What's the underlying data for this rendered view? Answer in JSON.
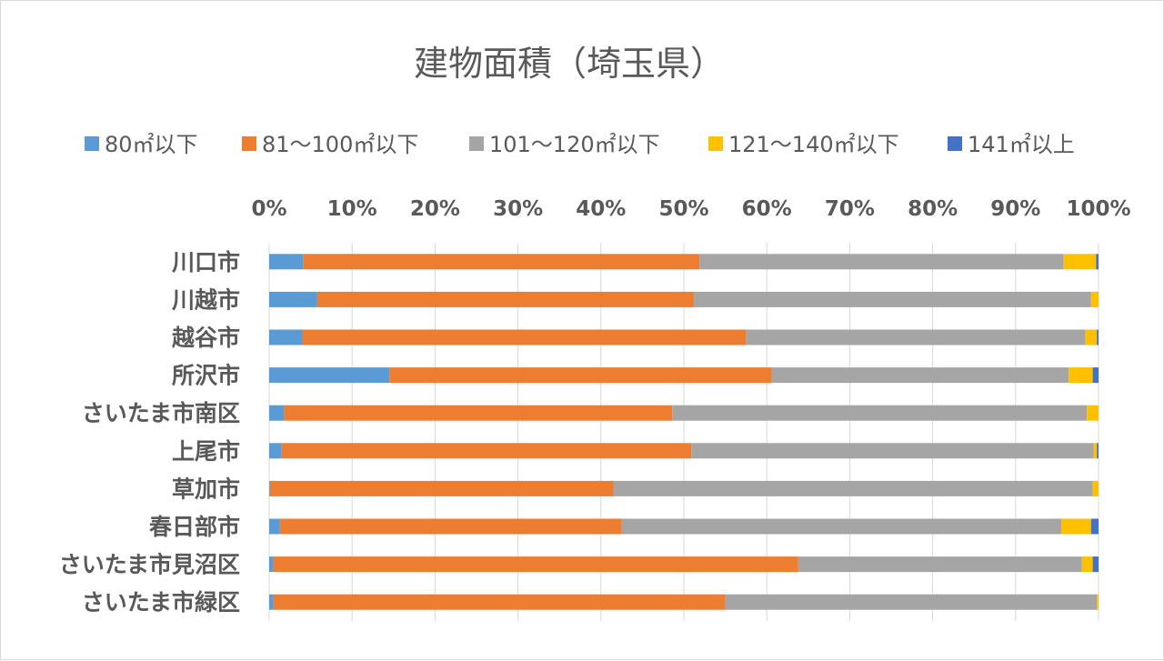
{
  "chart_data": {
    "type": "bar",
    "orientation": "horizontal",
    "stacked": "percent",
    "title": "建物面積（埼玉県）",
    "xlabel": "",
    "ylabel": "",
    "xlim": [
      0,
      1
    ],
    "x_ticks": [
      "0%",
      "10%",
      "20%",
      "30%",
      "40%",
      "50%",
      "60%",
      "70%",
      "80%",
      "90%",
      "100%"
    ],
    "x_axis_position": "top",
    "grid": true,
    "legend_position": "top",
    "categories": [
      "川口市",
      "川越市",
      "越谷市",
      "所沢市",
      "さいたま市南区",
      "上尾市",
      "草加市",
      "春日部市",
      "さいたま市見沼区",
      "さいたま市緑区"
    ],
    "series": [
      {
        "name": "80㎡以下",
        "color": "#5B9BD5",
        "values": [
          0.041,
          0.058,
          0.04,
          0.145,
          0.018,
          0.015,
          0.001,
          0.013,
          0.005,
          0.005
        ]
      },
      {
        "name": "81～100㎡以下",
        "color": "#ED7D31",
        "values": [
          0.478,
          0.454,
          0.535,
          0.461,
          0.468,
          0.494,
          0.414,
          0.412,
          0.633,
          0.545
        ]
      },
      {
        "name": "101～120㎡以下",
        "color": "#A5A5A5",
        "values": [
          0.439,
          0.479,
          0.409,
          0.358,
          0.5,
          0.485,
          0.578,
          0.53,
          0.342,
          0.448
        ]
      },
      {
        "name": "121～140㎡以下",
        "color": "#FFC000",
        "values": [
          0.039,
          0.009,
          0.014,
          0.029,
          0.014,
          0.004,
          0.007,
          0.036,
          0.013,
          0.002
        ]
      },
      {
        "name": "141㎡以上",
        "color": "#4472C4",
        "values": [
          0.003,
          0.0,
          0.002,
          0.007,
          0.0,
          0.002,
          0.0,
          0.009,
          0.007,
          0.0
        ]
      }
    ]
  }
}
